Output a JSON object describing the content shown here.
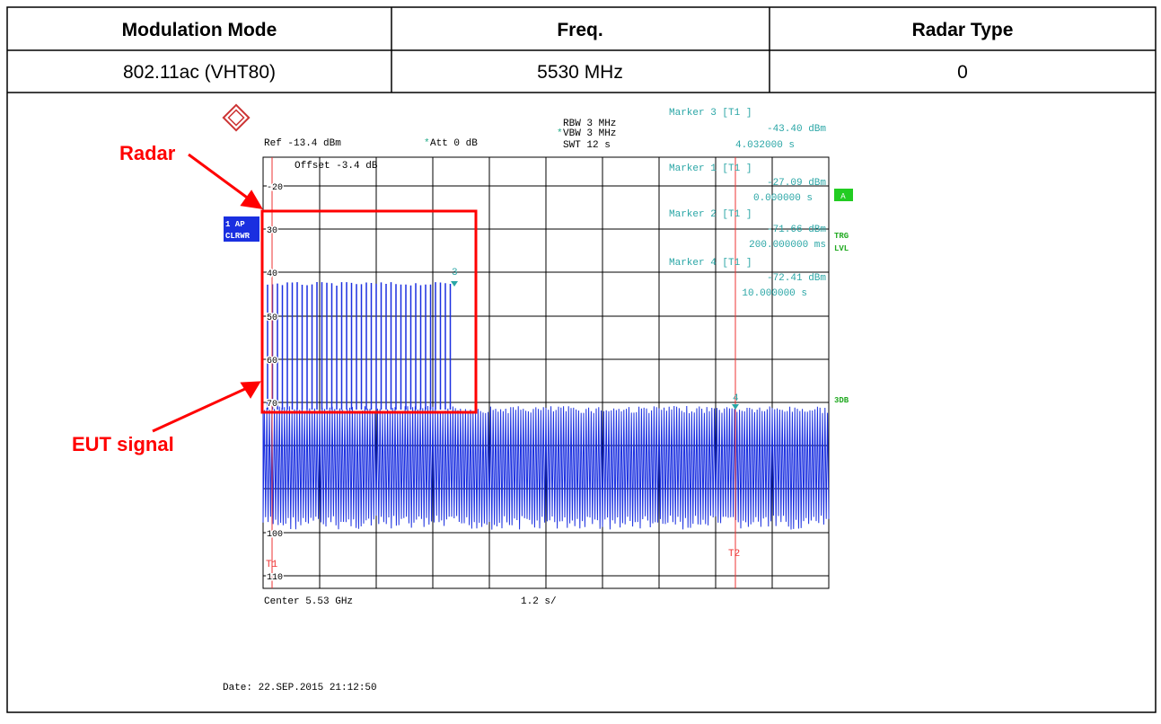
{
  "table": {
    "header": [
      "Modulation Mode",
      "Freq.",
      "Radar Type"
    ],
    "row": [
      "802.11ac (VHT80)",
      "5530 MHz",
      "0"
    ]
  },
  "analyzer": {
    "rbw": "RBW 3 MHz",
    "vbw": "VBW 3 MHz",
    "swt": "SWT 12 s",
    "ref": "Ref -13.4 dBm",
    "att": "Att  0 dB",
    "offset": "Offset -3.4 dB",
    "markers": [
      [
        "Marker 3 [T1 ]",
        "-43.40 dBm",
        "4.032000 s"
      ],
      [
        "Marker 1 [T1 ]",
        "-27.09 dBm",
        "0.000000 s"
      ],
      [
        "Marker 2 [T1 ]",
        "-71.66 dBm",
        "200.000000 ms"
      ],
      [
        "Marker 4 [T1 ]",
        "-72.41 dBm",
        "10.000000 s"
      ]
    ],
    "scale": [
      "-20",
      "30",
      "40",
      "50",
      "60",
      "70",
      "100",
      "110"
    ],
    "trace": [
      "1 AP",
      "CLRWR"
    ],
    "side": [
      "A",
      "TRG",
      "LVL",
      "3DB"
    ],
    "marker_tags": [
      "T1",
      "T2",
      "3",
      "4"
    ],
    "center": "Center 5.53 GHz",
    "span": "1.2 s/",
    "date": "Date: 22.SEP.2015  21:12:50"
  },
  "annotations": [
    "Radar",
    "EUT signal"
  ]
}
